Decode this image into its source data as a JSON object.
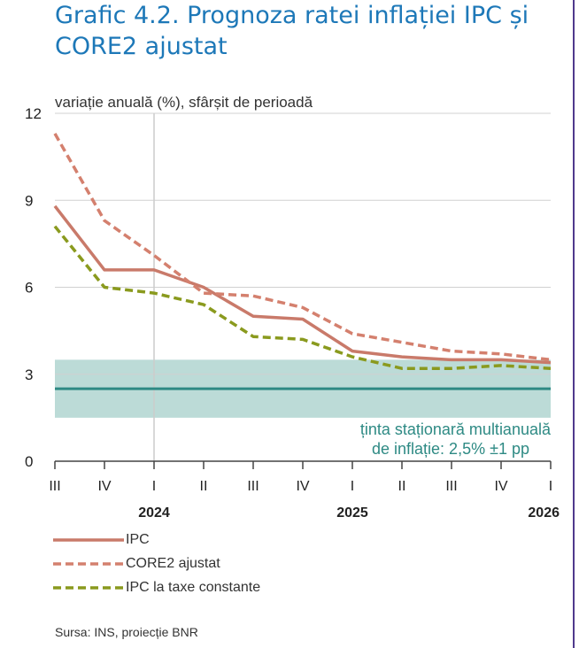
{
  "title": "Grafic 4.2. Prognoza ratei inflației IPC și CORE2 ajustat",
  "source": "Sursa: INS, proiecție BNR",
  "colors": {
    "title": "#1d78b8",
    "ipc": "#c97a6a",
    "core2": "#d4806e",
    "ipc_taxe": "#8a9a1e",
    "target_band": "#bcdbd7",
    "target_line": "#2e8a84",
    "target_text": "#2e8a84",
    "grid": "#d0d0d0",
    "vline": "#cccccc"
  },
  "chart_data": {
    "type": "line",
    "ylabel": "variație anuală (%), sfârșit de perioadă",
    "ylim": [
      0,
      12
    ],
    "yticks": [
      "0",
      "3",
      "6",
      "9",
      "12"
    ],
    "categories": [
      "III",
      "IV",
      "I",
      "II",
      "III",
      "IV",
      "I",
      "II",
      "III",
      "IV",
      "I"
    ],
    "years": [
      {
        "label": "2024",
        "category_index": 2
      },
      {
        "label": "2025",
        "category_index": 6
      },
      {
        "label": "2026",
        "category_index": 10
      }
    ],
    "grid": true,
    "vertical_marker_at_category": 2,
    "series": [
      {
        "name": "IPC",
        "style": "solid",
        "values": [
          8.8,
          6.6,
          6.6,
          6.0,
          5.0,
          4.9,
          3.8,
          3.6,
          3.5,
          3.5,
          3.4
        ]
      },
      {
        "name": "CORE2 ajustat",
        "style": "dashed",
        "values": [
          11.3,
          8.3,
          7.1,
          5.8,
          5.7,
          5.3,
          4.4,
          4.1,
          3.8,
          3.7,
          3.5
        ]
      },
      {
        "name": "IPC la taxe constante",
        "style": "dashed",
        "values": [
          8.1,
          6.0,
          5.8,
          5.4,
          4.3,
          4.2,
          3.6,
          3.2,
          3.2,
          3.3,
          3.2
        ]
      }
    ],
    "target": {
      "center": 2.5,
      "low": 1.5,
      "high": 3.5,
      "label_line1": "ținta staționară multianuală",
      "label_line2": "de inflație: 2,5% ±1 pp"
    }
  }
}
